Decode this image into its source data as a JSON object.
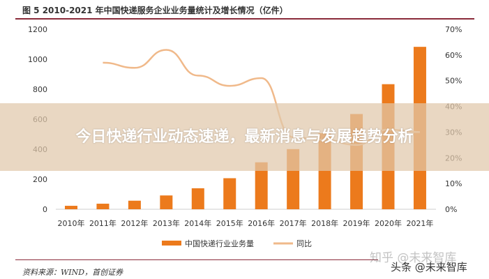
{
  "chart_data": {
    "type": "bar",
    "title": "图 5 2010-2021 年中国快递服务企业业务量统计及增长情况（亿件）",
    "categories": [
      "2010年",
      "2011年",
      "2012年",
      "2013年",
      "2014年",
      "2015年",
      "2016年",
      "2017年",
      "2018年",
      "2019年",
      "2020年",
      "2021年"
    ],
    "series": [
      {
        "name": "中国快递行业业务量",
        "type": "bar",
        "axis": "left",
        "color": "#ec7a1c",
        "values": [
          23,
          37,
          57,
          92,
          140,
          207,
          313,
          401,
          507,
          635,
          834,
          1083
        ]
      },
      {
        "name": "同比",
        "type": "line",
        "axis": "right",
        "color": "#f0b98a",
        "values": [
          null,
          57,
          55,
          62,
          52,
          48,
          51,
          28,
          27,
          25,
          31,
          30
        ]
      }
    ],
    "left_axis": {
      "ylim": [
        0,
        1200
      ],
      "ticks": [
        "0",
        "200",
        "400",
        "600",
        "800",
        "1000",
        "1200"
      ]
    },
    "right_axis": {
      "ylim": [
        0,
        70
      ],
      "ticks": [
        "0%",
        "10%",
        "20%",
        "30%",
        "40%",
        "50%",
        "60%",
        "70%"
      ]
    },
    "legend_position": "bottom",
    "source": "资料来源：WIND，首创证券"
  },
  "overlay_title": "今日快递行业动态速递，最新消息与发展趋势分析",
  "watermarks": [
    "知乎 @未来智库",
    "头条 @未来智库"
  ]
}
